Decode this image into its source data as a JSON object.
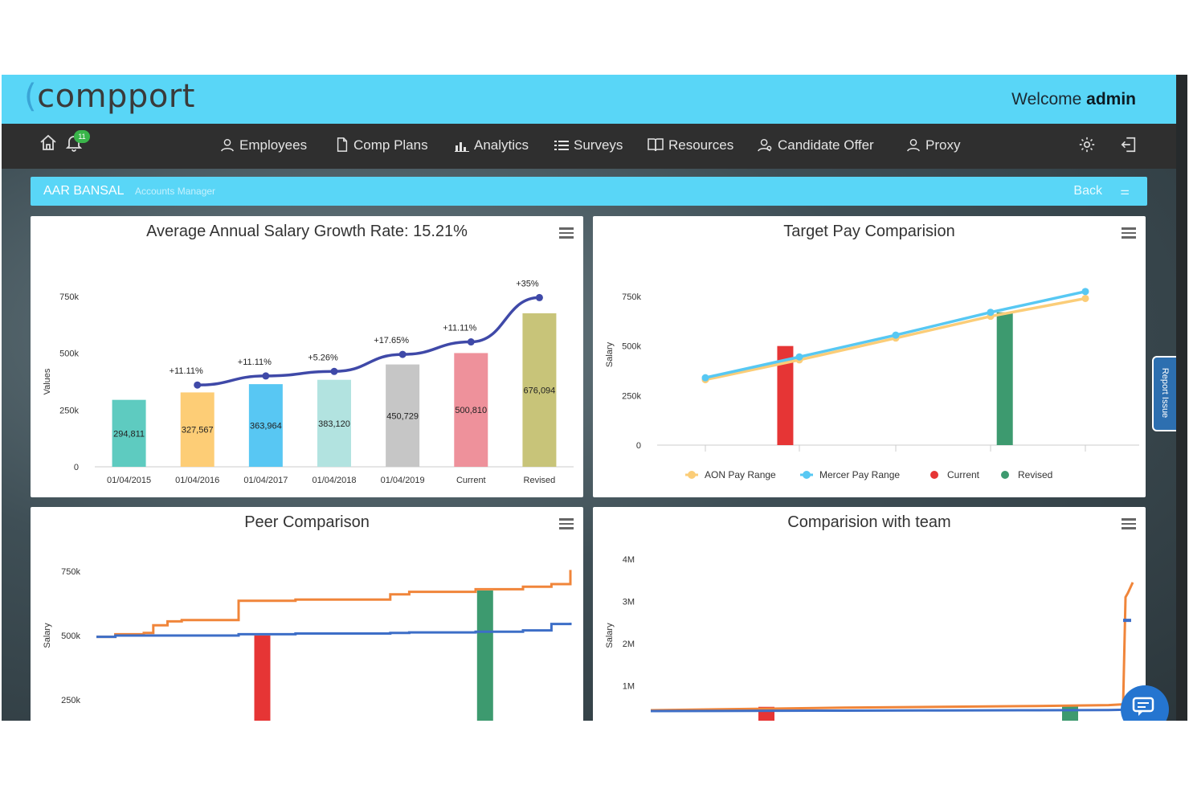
{
  "header": {
    "logo_text": "compport",
    "welcome_prefix": "Welcome",
    "welcome_user": "admin"
  },
  "nav": {
    "notification_count": "11",
    "items": [
      {
        "label": "Employees",
        "icon": "user-icon"
      },
      {
        "label": "Comp Plans",
        "icon": "document-icon"
      },
      {
        "label": "Analytics",
        "icon": "bar-chart-icon"
      },
      {
        "label": "Surveys",
        "icon": "list-icon"
      },
      {
        "label": "Resources",
        "icon": "book-icon"
      },
      {
        "label": "Candidate Offer",
        "icon": "user-badge-icon"
      },
      {
        "label": "Proxy",
        "icon": "user-icon"
      }
    ]
  },
  "userbar": {
    "name": "AAR BANSAL",
    "role": "Accounts Manager",
    "back_label": "Back"
  },
  "report_issue": "Report Issue",
  "chart_data": [
    {
      "id": "salary-growth",
      "type": "bar",
      "title": "Average Annual Salary Growth Rate: 15.21%",
      "ylabel": "Values",
      "ylim": [
        0,
        750000
      ],
      "yticks": [
        "0",
        "250k",
        "500k",
        "750k"
      ],
      "categories": [
        "01/04/2015",
        "01/04/2016",
        "01/04/2017",
        "01/04/2018",
        "01/04/2019",
        "Current",
        "Revised"
      ],
      "values": [
        294811,
        327567,
        363964,
        383120,
        450729,
        500810,
        676094
      ],
      "value_labels": [
        "294,811",
        "327,567",
        "363,964",
        "383,120",
        "450,729",
        "500,810",
        "676,094"
      ],
      "colors": [
        "#5ecbc0",
        "#fdcd76",
        "#58c7f3",
        "#b2e3e0",
        "#c6c6c6",
        "#ee919b",
        "#c8c479"
      ],
      "line_values": [
        null,
        360000,
        400000,
        420000,
        495000,
        550000,
        745000
      ],
      "growth_labels": [
        "",
        "+11.11%",
        "+11.11%",
        "+5.26%",
        "+17.65%",
        "+11.11%",
        "+35%"
      ],
      "line_color": "#3f49a8"
    },
    {
      "id": "target-pay",
      "type": "line",
      "title": "Target Pay Comparision",
      "ylabel": "Salary",
      "ylim": [
        0,
        750000
      ],
      "yticks": [
        "0",
        "250k",
        "500k",
        "750k"
      ],
      "x": [
        0,
        1,
        2,
        3,
        4
      ],
      "series": [
        {
          "name": "AON Pay Range",
          "color": "#fbcd78",
          "values": [
            330000,
            430000,
            540000,
            650000,
            740000
          ]
        },
        {
          "name": "Mercer Pay Range",
          "color": "#57c8f3",
          "values": [
            340000,
            445000,
            555000,
            670000,
            775000
          ]
        }
      ],
      "bars": [
        {
          "name": "Current",
          "color": "#e63535",
          "x": 0.85,
          "value": 500000
        },
        {
          "name": "Revised",
          "color": "#3d9a6f",
          "x": 3.15,
          "value": 670000
        }
      ],
      "legend": [
        "AON Pay Range",
        "Mercer Pay Range",
        "Current",
        "Revised"
      ],
      "legend_colors": [
        "#fbcd78",
        "#57c8f3",
        "#e63535",
        "#3d9a6f"
      ],
      "legend_placement": "bottom"
    },
    {
      "id": "peer-comparison",
      "type": "line",
      "title": "Peer Comparison",
      "ylabel": "Salary",
      "ylim": [
        0,
        750000
      ],
      "yticks": [
        "250k",
        "500k",
        "750k"
      ],
      "x": [
        0,
        0.04,
        0.1,
        0.12,
        0.15,
        0.18,
        0.28,
        0.3,
        0.42,
        0.62,
        0.66,
        0.8,
        0.9,
        0.96,
        1
      ],
      "series": [
        {
          "name": "",
          "color": "#f0853a",
          "values": [
            495000,
            505000,
            510000,
            540000,
            555000,
            560000,
            560000,
            635000,
            640000,
            660000,
            670000,
            680000,
            690000,
            700000,
            755000
          ]
        },
        {
          "name": "",
          "color": "#3d6ec7",
          "values": [
            495000,
            500000,
            500000,
            500000,
            500000,
            500000,
            500000,
            505000,
            508000,
            510000,
            512000,
            515000,
            520000,
            545000,
            550000
          ]
        }
      ],
      "bars": [
        {
          "name": "",
          "color": "#e63535",
          "x": 0.35,
          "value": 500000
        },
        {
          "name": "",
          "color": "#3d9a6f",
          "x": 0.82,
          "value": 675000
        }
      ]
    },
    {
      "id": "team-comparison",
      "type": "line",
      "title": "Comparision with team",
      "ylabel": "Salary",
      "ylim": [
        0,
        4000000
      ],
      "yticks": [
        "1M",
        "2M",
        "3M",
        "4M"
      ],
      "x": [
        0,
        0.2,
        0.4,
        0.6,
        0.8,
        0.95,
        0.98,
        0.985,
        0.99,
        1
      ],
      "series": [
        {
          "name": "",
          "color": "#f0853a",
          "values": [
            420000,
            450000,
            480000,
            500000,
            520000,
            540000,
            560000,
            3100000,
            3200000,
            3450000
          ]
        },
        {
          "name": "",
          "color": "#3d6ec7",
          "values": [
            400000,
            405000,
            410000,
            415000,
            420000,
            425000,
            430000,
            430000,
            null,
            null
          ]
        }
      ],
      "extra_point": {
        "color": "#3d6ec7",
        "x": 1,
        "value": 2550000
      },
      "bars": [
        {
          "name": "",
          "color": "#e63535",
          "x": 0.24,
          "value": 500000
        },
        {
          "name": "",
          "color": "#3d9a6f",
          "x": 0.87,
          "value": 520000
        }
      ]
    }
  ]
}
